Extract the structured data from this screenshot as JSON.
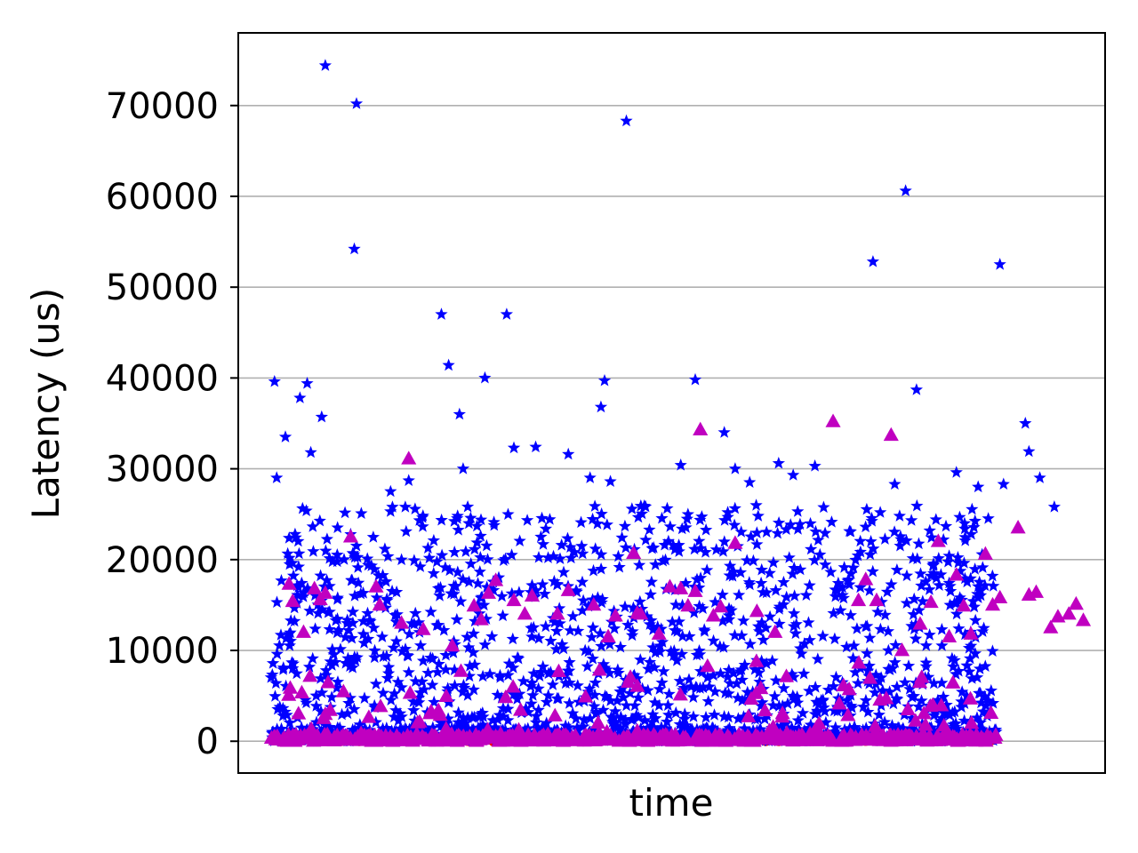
{
  "chart_data": {
    "type": "scatter",
    "title": "",
    "xlabel": "time",
    "ylabel": "Latency (us)",
    "x_ticks_shown": false,
    "ylim": [
      -3500,
      78000
    ],
    "yticks": [
      0,
      10000,
      20000,
      30000,
      40000,
      50000,
      60000,
      70000
    ],
    "ytick_labels": [
      "0",
      "10000",
      "20000",
      "30000",
      "40000",
      "50000",
      "60000",
      "70000"
    ],
    "grid": "horizontal",
    "legend": "none",
    "series": [
      {
        "marker": "circle",
        "color": "#ff0000",
        "typical_range": [
          0,
          400
        ],
        "points": [
          [
            0.005,
            300
          ],
          [
            0.2,
            200
          ],
          [
            0.38,
            150
          ],
          [
            0.55,
            250
          ],
          [
            0.72,
            200
          ],
          [
            0.92,
            300
          ],
          [
            0.995,
            300
          ]
        ]
      },
      {
        "marker": "star",
        "color": "#0000ff",
        "typical_range": [
          0,
          26000
        ],
        "outliers": [
          [
            0.005,
            39600
          ],
          [
            0.008,
            29000
          ],
          [
            0.02,
            33500
          ],
          [
            0.04,
            37800
          ],
          [
            0.05,
            39400
          ],
          [
            0.055,
            31800
          ],
          [
            0.07,
            35700
          ],
          [
            0.075,
            74400
          ],
          [
            0.115,
            54200
          ],
          [
            0.118,
            70200
          ],
          [
            0.165,
            27500
          ],
          [
            0.19,
            28700
          ],
          [
            0.235,
            47000
          ],
          [
            0.245,
            41400
          ],
          [
            0.26,
            36000
          ],
          [
            0.265,
            30000
          ],
          [
            0.295,
            40000
          ],
          [
            0.325,
            47000
          ],
          [
            0.335,
            32300
          ],
          [
            0.365,
            32400
          ],
          [
            0.41,
            31600
          ],
          [
            0.44,
            29000
          ],
          [
            0.455,
            36800
          ],
          [
            0.46,
            39700
          ],
          [
            0.468,
            28600
          ],
          [
            0.49,
            68300
          ],
          [
            0.51,
            25900
          ],
          [
            0.565,
            30400
          ],
          [
            0.585,
            39800
          ],
          [
            0.625,
            34000
          ],
          [
            0.64,
            30000
          ],
          [
            0.66,
            28500
          ],
          [
            0.7,
            30600
          ],
          [
            0.72,
            29300
          ],
          [
            0.75,
            30300
          ],
          [
            0.83,
            52800
          ],
          [
            0.86,
            28300
          ],
          [
            0.875,
            60600
          ],
          [
            0.89,
            38700
          ],
          [
            0.945,
            29600
          ],
          [
            0.975,
            28000
          ],
          [
            1.005,
            52500
          ],
          [
            1.01,
            28300
          ],
          [
            1.04,
            35000
          ],
          [
            1.045,
            31900
          ],
          [
            1.06,
            29000
          ],
          [
            1.08,
            25800
          ]
        ]
      },
      {
        "marker": "triangle",
        "color": "#c000c0",
        "typical_range": [
          0,
          9000
        ],
        "outliers": [
          [
            0.025,
            17300
          ],
          [
            0.03,
            15400
          ],
          [
            0.045,
            12000
          ],
          [
            0.06,
            16800
          ],
          [
            0.068,
            15600
          ],
          [
            0.075,
            16300
          ],
          [
            0.11,
            22500
          ],
          [
            0.145,
            17000
          ],
          [
            0.15,
            15000
          ],
          [
            0.18,
            13000
          ],
          [
            0.19,
            31100
          ],
          [
            0.21,
            12300
          ],
          [
            0.25,
            10500
          ],
          [
            0.28,
            14900
          ],
          [
            0.29,
            13400
          ],
          [
            0.3,
            16300
          ],
          [
            0.31,
            17700
          ],
          [
            0.335,
            15500
          ],
          [
            0.35,
            14000
          ],
          [
            0.36,
            16000
          ],
          [
            0.395,
            14000
          ],
          [
            0.41,
            16600
          ],
          [
            0.445,
            15000
          ],
          [
            0.465,
            11500
          ],
          [
            0.475,
            13800
          ],
          [
            0.5,
            20700
          ],
          [
            0.505,
            14100
          ],
          [
            0.51,
            14000
          ],
          [
            0.535,
            11800
          ],
          [
            0.55,
            17000
          ],
          [
            0.565,
            16800
          ],
          [
            0.575,
            14900
          ],
          [
            0.585,
            16500
          ],
          [
            0.592,
            34300
          ],
          [
            0.61,
            13800
          ],
          [
            0.62,
            14800
          ],
          [
            0.64,
            21800
          ],
          [
            0.67,
            14300
          ],
          [
            0.695,
            12000
          ],
          [
            0.775,
            35200
          ],
          [
            0.81,
            15500
          ],
          [
            0.82,
            17800
          ],
          [
            0.835,
            15500
          ],
          [
            0.87,
            10000
          ],
          [
            0.895,
            12900
          ],
          [
            0.91,
            15300
          ],
          [
            0.92,
            22000
          ],
          [
            0.935,
            11500
          ],
          [
            0.945,
            18300
          ],
          [
            0.955,
            14900
          ],
          [
            0.965,
            11800
          ],
          [
            0.985,
            20600
          ],
          [
            0.995,
            15000
          ],
          [
            1.005,
            15800
          ],
          [
            1.03,
            23500
          ],
          [
            1.045,
            16100
          ],
          [
            1.055,
            16400
          ],
          [
            1.075,
            12500
          ],
          [
            1.085,
            13700
          ],
          [
            1.1,
            14000
          ],
          [
            1.11,
            15100
          ],
          [
            1.12,
            13300
          ],
          [
            0.855,
            33700
          ]
        ]
      }
    ]
  }
}
